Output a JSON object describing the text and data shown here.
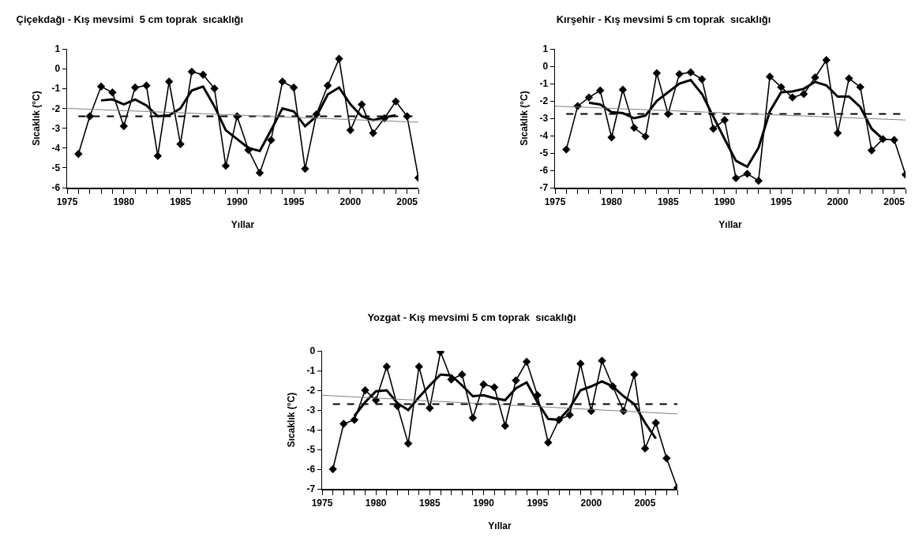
{
  "chart_data": [
    {
      "type": "line",
      "title": "Çiçekdağı - Kış mevsimi  5 cm toprak  sıcaklığı",
      "xlabel": "Yıllar",
      "ylabel": "Sıcaklık (°C)",
      "xlim": [
        1975,
        2006
      ],
      "xticks": [
        1975,
        {
          "value": 1976,
          "label": null
        },
        {
          "value": 1977,
          "label": null
        },
        {
          "value": 1978,
          "label": null
        },
        {
          "value": 1979,
          "label": null
        },
        1980,
        {
          "value": 1981,
          "label": null
        },
        {
          "value": 1982,
          "label": null
        },
        {
          "value": 1983,
          "label": null
        },
        {
          "value": 1984,
          "label": null
        },
        1985,
        {
          "value": 1986,
          "label": null
        },
        {
          "value": 1987,
          "label": null
        },
        {
          "value": 1988,
          "label": null
        },
        {
          "value": 1989,
          "label": null
        },
        1990,
        {
          "value": 1991,
          "label": null
        },
        {
          "value": 1992,
          "label": null
        },
        {
          "value": 1993,
          "label": null
        },
        {
          "value": 1994,
          "label": null
        },
        1995,
        {
          "value": 1996,
          "label": null
        },
        {
          "value": 1997,
          "label": null
        },
        {
          "value": 1998,
          "label": null
        },
        {
          "value": 1999,
          "label": null
        },
        2000,
        {
          "value": 2001,
          "label": null
        },
        {
          "value": 2002,
          "label": null
        },
        {
          "value": 2003,
          "label": null
        },
        {
          "value": 2004,
          "label": null
        },
        2005,
        {
          "value": 2006,
          "label": null
        }
      ],
      "ylim": [
        -6,
        1
      ],
      "yticks": [
        -6,
        -5,
        -4,
        -3,
        -2,
        -1,
        0,
        1
      ],
      "series": [
        {
          "color": "#000000",
          "marker": "diamond",
          "line_style": "solid",
          "x": [
            1976,
            1977,
            1978,
            1979,
            1980,
            1981,
            1982,
            1983,
            1984,
            1985,
            1986,
            1987,
            1988,
            1989,
            1990,
            1991,
            1992,
            1993,
            1994,
            1995,
            1996,
            1997,
            1998,
            1999,
            2000,
            2001,
            2002,
            2003,
            2004,
            2005,
            2006
          ],
          "values": [
            -4.3,
            -2.4,
            -0.9,
            -1.2,
            -2.9,
            -0.95,
            -0.85,
            -4.4,
            -0.65,
            -3.8,
            -0.15,
            -0.3,
            -1.0,
            -4.9,
            -2.4,
            -4.1,
            -5.25,
            -3.6,
            -0.65,
            -0.95,
            -5.05,
            -2.3,
            -0.85,
            0.5,
            -3.1,
            -1.8,
            -3.25,
            -2.5,
            -1.65,
            -2.4,
            -5.5
          ]
        },
        {
          "color": "#000000",
          "marker": "none",
          "line_style": "solid",
          "x": [
            1978,
            1979,
            1980,
            1981,
            1982,
            1983,
            1984,
            1985,
            1986,
            1987,
            1988,
            1989,
            1990,
            1991,
            1992,
            1993,
            1994,
            1995,
            1996,
            1997,
            1998,
            1999,
            2000,
            2001,
            2002,
            2003,
            2004
          ],
          "values": [
            -1.6,
            -1.55,
            -1.8,
            -1.55,
            -1.85,
            -2.4,
            -2.35,
            -2.0,
            -1.1,
            -0.9,
            -1.9,
            -3.1,
            -3.55,
            -4.0,
            -4.15,
            -3.1,
            -2.0,
            -2.15,
            -2.9,
            -2.4,
            -1.3,
            -0.95,
            -1.8,
            -2.4,
            -2.6,
            -2.45,
            -2.35
          ]
        },
        {
          "color": "#000000",
          "marker": "none",
          "line_style": "dashed",
          "x": [
            1976,
            2006
          ],
          "values": [
            -2.4,
            -2.4
          ]
        },
        {
          "color": "#808080",
          "marker": "none",
          "line_style": "solid",
          "x": [
            1975,
            2006
          ],
          "values": [
            -2.0,
            -2.7
          ]
        }
      ]
    },
    {
      "type": "line",
      "title": "Kırşehir - Kış mevsimi 5 cm toprak  sıcaklığı",
      "xlabel": "Yıllar",
      "ylabel": "Sıcaklık (°C)",
      "xlim": [
        1975,
        2006
      ],
      "xticks": [
        1975,
        {
          "value": 1976,
          "label": null
        },
        {
          "value": 1977,
          "label": null
        },
        {
          "value": 1978,
          "label": null
        },
        {
          "value": 1979,
          "label": null
        },
        1980,
        {
          "value": 1981,
          "label": null
        },
        {
          "value": 1982,
          "label": null
        },
        {
          "value": 1983,
          "label": null
        },
        {
          "value": 1984,
          "label": null
        },
        1985,
        {
          "value": 1986,
          "label": null
        },
        {
          "value": 1987,
          "label": null
        },
        {
          "value": 1988,
          "label": null
        },
        {
          "value": 1989,
          "label": null
        },
        1990,
        {
          "value": 1991,
          "label": null
        },
        {
          "value": 1992,
          "label": null
        },
        {
          "value": 1993,
          "label": null
        },
        {
          "value": 1994,
          "label": null
        },
        1995,
        {
          "value": 1996,
          "label": null
        },
        {
          "value": 1997,
          "label": null
        },
        {
          "value": 1998,
          "label": null
        },
        {
          "value": 1999,
          "label": null
        },
        2000,
        {
          "value": 2001,
          "label": null
        },
        {
          "value": 2002,
          "label": null
        },
        {
          "value": 2003,
          "label": null
        },
        {
          "value": 2004,
          "label": null
        },
        2005,
        {
          "value": 2006,
          "label": null
        }
      ],
      "ylim": [
        -7,
        1
      ],
      "yticks": [
        -7,
        -6,
        -5,
        -4,
        -3,
        -2,
        -1,
        0,
        1
      ],
      "series": [
        {
          "color": "#000000",
          "marker": "diamond",
          "line_style": "solid",
          "x": [
            1976,
            1977,
            1978,
            1979,
            1980,
            1981,
            1982,
            1983,
            1984,
            1985,
            1986,
            1987,
            1988,
            1989,
            1990,
            1991,
            1992,
            1993,
            1994,
            1995,
            1996,
            1997,
            1998,
            1999,
            2000,
            2001,
            2002,
            2003,
            2004,
            2005,
            2006
          ],
          "values": [
            -4.8,
            -2.3,
            -1.8,
            -1.4,
            -4.1,
            -1.35,
            -3.55,
            -4.05,
            -0.4,
            -2.75,
            -0.45,
            -0.35,
            -0.75,
            -3.6,
            -3.1,
            -6.45,
            -6.2,
            -6.6,
            -0.6,
            -1.2,
            -1.8,
            -1.6,
            -0.65,
            0.35,
            -3.85,
            -0.7,
            -1.2,
            -4.85,
            -4.2,
            -4.25,
            -6.25
          ]
        },
        {
          "color": "#000000",
          "marker": "none",
          "line_style": "solid",
          "x": [
            1978,
            1979,
            1980,
            1981,
            1982,
            1983,
            1984,
            1985,
            1986,
            1987,
            1988,
            1989,
            1990,
            1991,
            1992,
            1993,
            1994,
            1995,
            1996,
            1997,
            1998,
            1999,
            2000,
            2001,
            2002,
            2003,
            2004
          ],
          "values": [
            -2.1,
            -2.2,
            -2.65,
            -2.7,
            -3.0,
            -2.85,
            -2.0,
            -1.5,
            -1.0,
            -0.8,
            -1.6,
            -2.9,
            -4.2,
            -5.45,
            -5.8,
            -4.7,
            -2.6,
            -1.5,
            -1.45,
            -1.3,
            -0.9,
            -1.1,
            -1.75,
            -1.75,
            -2.35,
            -3.6,
            -4.2
          ]
        },
        {
          "color": "#000000",
          "marker": "none",
          "line_style": "dashed",
          "x": [
            1976,
            2006
          ],
          "values": [
            -2.75,
            -2.75
          ]
        },
        {
          "color": "#808080",
          "marker": "none",
          "line_style": "solid",
          "x": [
            1975,
            2006
          ],
          "values": [
            -2.3,
            -3.1
          ]
        }
      ]
    },
    {
      "type": "line",
      "title": "Yozgat - Kış mevsimi 5 cm toprak  sıcaklığı",
      "xlabel": "Yıllar",
      "ylabel": "Sıcaklık (°C)",
      "xlim": [
        1975,
        2008
      ],
      "xticks": [
        1975,
        {
          "value": 1976,
          "label": null
        },
        {
          "value": 1977,
          "label": null
        },
        {
          "value": 1978,
          "label": null
        },
        {
          "value": 1979,
          "label": null
        },
        1980,
        {
          "value": 1981,
          "label": null
        },
        {
          "value": 1982,
          "label": null
        },
        {
          "value": 1983,
          "label": null
        },
        {
          "value": 1984,
          "label": null
        },
        1985,
        {
          "value": 1986,
          "label": null
        },
        {
          "value": 1987,
          "label": null
        },
        {
          "value": 1988,
          "label": null
        },
        {
          "value": 1989,
          "label": null
        },
        1990,
        {
          "value": 1991,
          "label": null
        },
        {
          "value": 1992,
          "label": null
        },
        {
          "value": 1993,
          "label": null
        },
        {
          "value": 1994,
          "label": null
        },
        1995,
        {
          "value": 1996,
          "label": null
        },
        {
          "value": 1997,
          "label": null
        },
        {
          "value": 1998,
          "label": null
        },
        {
          "value": 1999,
          "label": null
        },
        2000,
        {
          "value": 2001,
          "label": null
        },
        {
          "value": 2002,
          "label": null
        },
        {
          "value": 2003,
          "label": null
        },
        {
          "value": 2004,
          "label": null
        },
        2005,
        {
          "value": 2006,
          "label": null
        },
        {
          "value": 2007,
          "label": null
        },
        {
          "value": 2008,
          "label": null
        }
      ],
      "ylim": [
        -7,
        0
      ],
      "yticks": [
        -7,
        -6,
        -5,
        -4,
        -3,
        -2,
        -1,
        0
      ],
      "series": [
        {
          "color": "#000000",
          "marker": "diamond",
          "line_style": "solid",
          "x": [
            1976,
            1977,
            1978,
            1979,
            1980,
            1981,
            1982,
            1983,
            1984,
            1985,
            1986,
            1987,
            1988,
            1989,
            1990,
            1991,
            1992,
            1993,
            1994,
            1995,
            1996,
            1997,
            1998,
            1999,
            2000,
            2001,
            2002,
            2003,
            2004,
            2005,
            2006,
            2007,
            2008
          ],
          "values": [
            -6.0,
            -3.7,
            -3.5,
            -2.0,
            -2.5,
            -0.8,
            -2.8,
            -4.7,
            -0.8,
            -2.9,
            -0.05,
            -1.45,
            -1.2,
            -3.4,
            -1.7,
            -1.85,
            -3.8,
            -1.5,
            -0.55,
            -2.25,
            -4.65,
            -3.5,
            -3.25,
            -0.65,
            -3.05,
            -0.5,
            -1.8,
            -3.05,
            -1.2,
            -4.95,
            -3.65,
            -5.45,
            -6.95
          ]
        },
        {
          "color": "#000000",
          "marker": "none",
          "line_style": "solid",
          "x": [
            1978,
            1979,
            1980,
            1981,
            1982,
            1983,
            1984,
            1985,
            1986,
            1987,
            1988,
            1989,
            1990,
            1991,
            1992,
            1993,
            1994,
            1995,
            1996,
            1997,
            1998,
            1999,
            2000,
            2001,
            2002,
            2003,
            2004,
            2005,
            2006
          ],
          "values": [
            -3.3,
            -2.6,
            -2.05,
            -2.0,
            -2.65,
            -3.0,
            -2.35,
            -1.75,
            -1.2,
            -1.25,
            -1.75,
            -2.3,
            -2.25,
            -2.4,
            -2.5,
            -1.9,
            -1.6,
            -2.6,
            -3.45,
            -3.5,
            -2.9,
            -2.0,
            -1.8,
            -1.55,
            -1.8,
            -2.3,
            -2.7,
            -3.65,
            -4.45
          ]
        },
        {
          "color": "#000000",
          "marker": "none",
          "line_style": "dashed",
          "x": [
            1976,
            2008
          ],
          "values": [
            -2.7,
            -2.7
          ]
        },
        {
          "color": "#808080",
          "marker": "none",
          "line_style": "solid",
          "x": [
            1975,
            2008
          ],
          "values": [
            -2.25,
            -3.2
          ]
        }
      ]
    }
  ]
}
